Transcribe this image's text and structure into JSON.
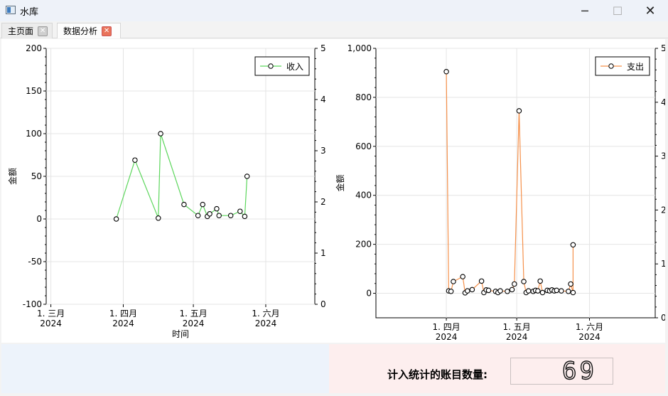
{
  "window": {
    "title": "水库",
    "minimize": "─",
    "maximize": "☐",
    "close": "✕"
  },
  "tabs": [
    {
      "label": "主页面",
      "close_icon": "✕"
    },
    {
      "label": "数据分析",
      "close_icon": "✕"
    }
  ],
  "chart_data": [
    {
      "type": "line",
      "legend": "收入",
      "legend_position": "top-right",
      "color": "#5cd65c",
      "ylabel": "金额",
      "xlabel": "时间",
      "ylim": [
        -100,
        200
      ],
      "yticks": [
        "200",
        "150",
        "100",
        "50",
        "0",
        "-50",
        "-100"
      ],
      "y2ticks": [
        "5",
        "4",
        "3",
        "2",
        "1",
        "0"
      ],
      "xticks": [
        {
          "month": "1. 三月",
          "year": "2024"
        },
        {
          "month": "1. 四月",
          "year": "2024"
        },
        {
          "month": "1. 五月",
          "year": "2024"
        },
        {
          "month": "1. 六月",
          "year": "2024"
        }
      ],
      "x": [
        "2024-03-29",
        "2024-04-06",
        "2024-04-16",
        "2024-04-17",
        "2024-04-27",
        "2024-05-03",
        "2024-05-05",
        "2024-05-07",
        "2024-05-08",
        "2024-05-11",
        "2024-05-12",
        "2024-05-17",
        "2024-05-21",
        "2024-05-23",
        "2024-05-24"
      ],
      "y": [
        0,
        69,
        1,
        100,
        17,
        4,
        17,
        3,
        6,
        12,
        4,
        4,
        9,
        3,
        50
      ]
    },
    {
      "type": "line",
      "legend": "支出",
      "legend_position": "top-right",
      "color": "#f5904a",
      "ylabel": "金额",
      "xlabel": "",
      "ylim": [
        -100,
        1000
      ],
      "yticks": [
        "1,000",
        "800",
        "600",
        "400",
        "200",
        "0"
      ],
      "y2ticks": [
        "5",
        "4",
        "3",
        "2",
        "1",
        "0"
      ],
      "xticks": [
        {
          "month": "1. 四月",
          "year": "2024"
        },
        {
          "month": "1. 五月",
          "year": "2024"
        },
        {
          "month": "1. 六月",
          "year": "2024"
        }
      ],
      "x": [
        "2024-04-01",
        "2024-04-02",
        "2024-04-03",
        "2024-04-04",
        "2024-04-08",
        "2024-04-09",
        "2024-04-10",
        "2024-04-12",
        "2024-04-16",
        "2024-04-17",
        "2024-04-18",
        "2024-04-19",
        "2024-04-22",
        "2024-04-23",
        "2024-04-24",
        "2024-04-27",
        "2024-04-29",
        "2024-04-30",
        "2024-05-02",
        "2024-05-04",
        "2024-05-05",
        "2024-05-06",
        "2024-05-08",
        "2024-05-09",
        "2024-05-10",
        "2024-05-11",
        "2024-05-12",
        "2024-05-14",
        "2024-05-15",
        "2024-05-16",
        "2024-05-17",
        "2024-05-18",
        "2024-05-20",
        "2024-05-23",
        "2024-05-24",
        "2024-05-25",
        "2024-05-25"
      ],
      "y": [
        905,
        10,
        8,
        48,
        68,
        2,
        10,
        15,
        50,
        3,
        14,
        12,
        8,
        3,
        10,
        8,
        15,
        38,
        745,
        48,
        3,
        10,
        8,
        12,
        10,
        50,
        3,
        12,
        10,
        14,
        10,
        12,
        10,
        8,
        38,
        3,
        198
      ]
    }
  ],
  "footer": {
    "count_label": "计入统计的账目数量:",
    "count_value": "69"
  }
}
